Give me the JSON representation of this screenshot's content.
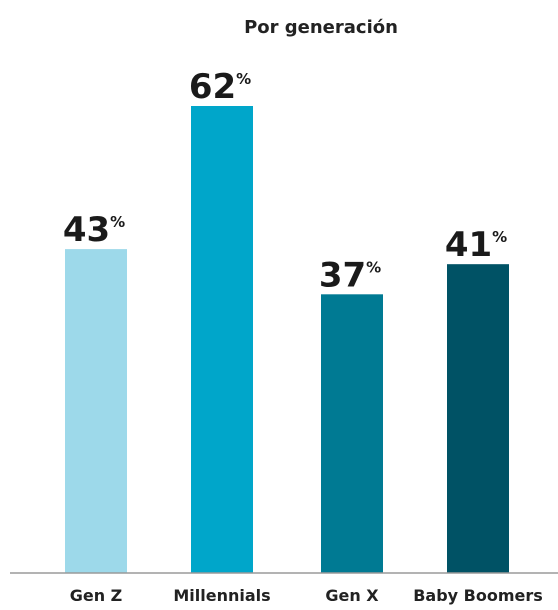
{
  "chart_data": {
    "type": "bar",
    "title": "Por generación",
    "categories": [
      "Gen Z",
      "Millennials",
      "Gen X",
      "Baby Boomers"
    ],
    "values": [
      43,
      62,
      37,
      41
    ],
    "value_suffix": "%",
    "colors": [
      "#9dd9ea",
      "#00a6ca",
      "#007a93",
      "#005265"
    ],
    "axis_color": "#9a9a9a",
    "ylim": [
      0,
      64
    ]
  }
}
